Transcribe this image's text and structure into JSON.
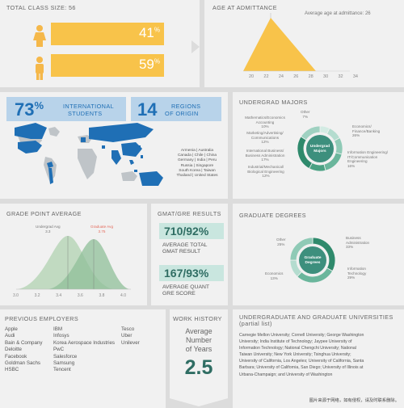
{
  "class_size": {
    "title": "TOTAL CLASS SIZE: 56",
    "female_pct": "41",
    "male_pct": "59",
    "pct_sign": "%"
  },
  "age": {
    "title": "AGE AT ADMITTANCE",
    "avg_label": "Average age at admittance: 26",
    "ticks": [
      "20",
      "22",
      "24",
      "26",
      "28",
      "30",
      "32",
      "34"
    ]
  },
  "international": {
    "pct": "73",
    "pct_sign": "%",
    "label_line1": "INTERNATIONAL",
    "label_line2": "STUDENTS",
    "regions_num": "14",
    "regions_line1": "REGIONS",
    "regions_line2": "OF ORIGIN",
    "countries": [
      "Armenia | Australia",
      "Canada | Chile | China",
      "Germany | India | Peru",
      "Russia | Singapore",
      "South Korea | Taiwan",
      "Thailand | United States"
    ]
  },
  "undergrad": {
    "title": "UNDERGRAD MAJORS",
    "center_line1": "Undergrad",
    "center_line2": "Majors",
    "labels": {
      "other": [
        "Other",
        "7%"
      ],
      "math": [
        "Mathematics/Economics",
        "Accounting",
        "10%"
      ],
      "marketing": [
        "Marketing/Advertising/",
        "Communications",
        "12%"
      ],
      "intl": [
        "International Business/",
        "Business Administration",
        "17%"
      ],
      "industrial": [
        "Industrial/Mechanical/",
        "Biological Engineering",
        "12%"
      ],
      "economics": [
        "Economics/",
        "Finance/Banking",
        "26%"
      ],
      "infoeng": [
        "Information Engineering/",
        "IT/Communication",
        "Engineering",
        "16%"
      ]
    },
    "slices": [
      7,
      10,
      12,
      17,
      12,
      26,
      16
    ]
  },
  "gpa": {
    "title": "GRADE POINT AVERAGE",
    "undergrad_label": "Undergrad Avg",
    "undergrad_val": "3.3",
    "graduate_label": "Graduate Avg",
    "graduate_val": "3.75",
    "ticks": [
      "3.0",
      "3.2",
      "3.4",
      "3.6",
      "3.8",
      "4.0"
    ]
  },
  "gmat": {
    "title": "GMAT/GRE RESULTS",
    "total_value": "710/92%",
    "total_line1": "AVERAGE TOTAL",
    "total_line2": "GMAT RESULT",
    "quant_value": "167/93%",
    "quant_line1": "AVERAGE QUANT",
    "quant_line2": "GRE SCORE"
  },
  "graddeg": {
    "title": "GRADUATE DEGREES",
    "center_line1": "Graduate",
    "center_line2": "Degrees",
    "labels": {
      "other": [
        "Other",
        "25%"
      ],
      "economics": [
        "Economics",
        "13%"
      ],
      "busadmin": [
        "Business",
        "Administration",
        "33%"
      ],
      "it": [
        "Information",
        "Technology",
        "29%"
      ]
    },
    "slices": [
      33,
      29,
      13,
      25
    ]
  },
  "employers": {
    "title": "PREVIOUS EMPLOYERS",
    "col1": [
      "Apple",
      "Audi",
      "Bain & Company",
      "Deloitte",
      "Facebook",
      "Goldman Sachs",
      "HSBC"
    ],
    "col2": [
      "IBM",
      "Infosys",
      "Korea Aerospace Industries",
      "PwC",
      "Salesforce",
      "Samsung",
      "Tencent"
    ],
    "col3": [
      "Tesco",
      "Uber",
      "Unilever"
    ]
  },
  "work": {
    "title": "WORK HISTORY",
    "line1": "Average",
    "line2": "Number",
    "line3": "of Years",
    "value": "2.5"
  },
  "universities": {
    "title_line1": "UNDERGRADUATE AND GRADUATE UNIVERSITIES",
    "title_line2": "(partial list)",
    "lines": [
      "Carnegie Mellon University; Cornell University; George Washington",
      "University; India Institute of Technology; Jaypee University of",
      "Information Technology; National Chengchi University; National",
      "Taiwan University; New York University; Tsinghua University;",
      "University of California, Los Angeles; University of California, Santa",
      "Barbara; University of California, San Diego; University of Illinois at",
      "Urbana-Champaign; and University of Washington"
    ]
  },
  "watermark": "图片来源于网络，如有侵权，请及时联系删除。",
  "colors": {
    "yellow": "#f8c34a",
    "teal": "#2f8a7a",
    "light_blue": "#b8d3ea",
    "dark_blue": "#1f6fb5",
    "green_curve": "#a9cfae",
    "grey_map": "#bfc4c8"
  }
}
